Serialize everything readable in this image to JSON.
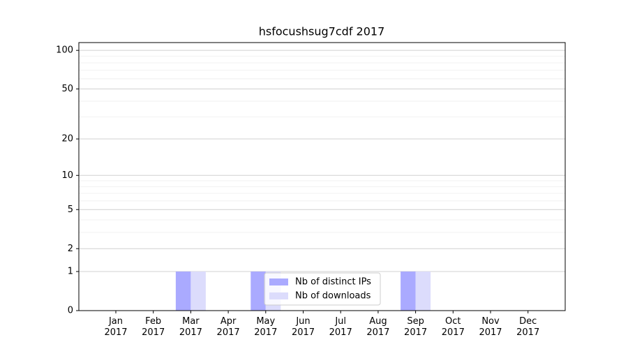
{
  "chart_data": {
    "type": "bar",
    "title": "hsfocushsug7cdf 2017",
    "categories": [
      "Jan\n2017",
      "Feb\n2017",
      "Mar\n2017",
      "Apr\n2017",
      "May\n2017",
      "Jun\n2017",
      "Jul\n2017",
      "Aug\n2017",
      "Sep\n2017",
      "Oct\n2017",
      "Nov\n2017",
      "Dec\n2017"
    ],
    "series": [
      {
        "name": "Nb of distinct IPs",
        "color": "#aaaaff",
        "values": [
          0,
          0,
          1,
          0,
          1,
          0,
          0,
          0,
          1,
          0,
          0,
          0
        ]
      },
      {
        "name": "Nb of downloads",
        "color": "#dcdcfc",
        "values": [
          0,
          0,
          1,
          0,
          1,
          0,
          0,
          0,
          1,
          0,
          0,
          0
        ]
      }
    ],
    "yscale": "symlog",
    "ylim": [
      0,
      115
    ],
    "yticks": [
      0,
      1,
      2,
      5,
      10,
      20,
      50,
      100
    ],
    "yminorticks": [
      3,
      4,
      6,
      7,
      8,
      9,
      30,
      40,
      60,
      70,
      80,
      90
    ],
    "grid": true,
    "legend": "lower center"
  }
}
